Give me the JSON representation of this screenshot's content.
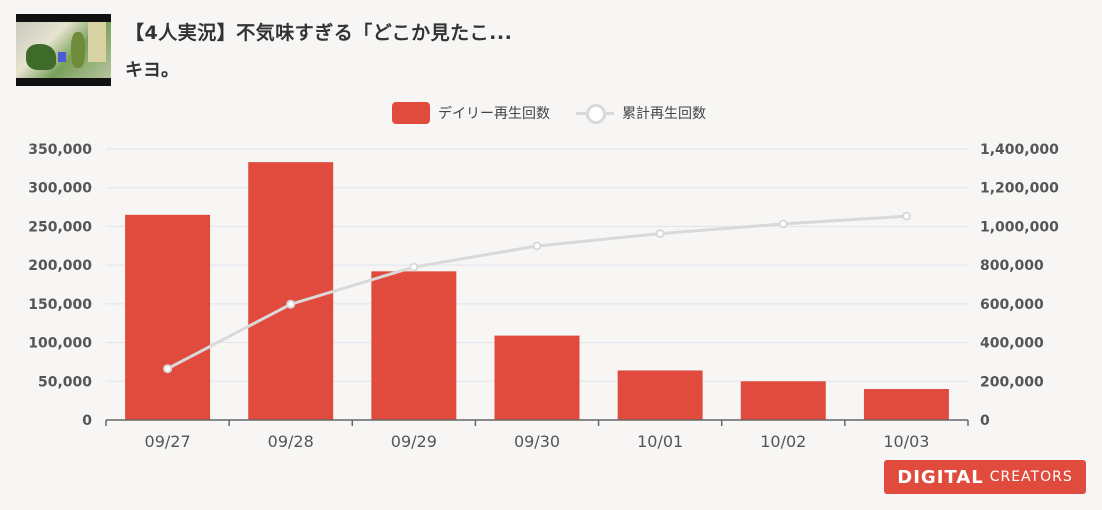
{
  "video": {
    "title": "【4人実況】不気味すぎる「どこか見たこ...",
    "channel": "キヨ。"
  },
  "legend": {
    "bar_label": "デイリー再生回数",
    "line_label": "累計再生回数"
  },
  "chart_data": {
    "type": "bar",
    "categories": [
      "09/27",
      "09/28",
      "09/29",
      "09/30",
      "10/01",
      "10/02",
      "10/03"
    ],
    "series": [
      {
        "name": "デイリー再生回数",
        "type": "bar",
        "axis": "left",
        "values": [
          265000,
          333000,
          192000,
          109000,
          64000,
          50000,
          40000
        ],
        "color": "#e04b3d"
      },
      {
        "name": "累計再生回数",
        "type": "line",
        "axis": "right",
        "values": [
          265000,
          598000,
          790000,
          899000,
          963000,
          1013000,
          1053000
        ],
        "color": "#d9d9d9"
      }
    ],
    "y_left": {
      "ylim": [
        0,
        350000
      ],
      "ticks": [
        "0",
        "50,000",
        "100,000",
        "150,000",
        "200,000",
        "250,000",
        "300,000",
        "350,000"
      ]
    },
    "y_right": {
      "ylim": [
        0,
        1400000
      ],
      "ticks": [
        "0",
        "200,000",
        "400,000",
        "600,000",
        "800,000",
        "1,000,000",
        "1,200,000",
        "1,400,000"
      ]
    },
    "grid": true,
    "legend_position": "top-center"
  },
  "logo": {
    "main": "DIGITAL",
    "sub": "CREATORS"
  }
}
